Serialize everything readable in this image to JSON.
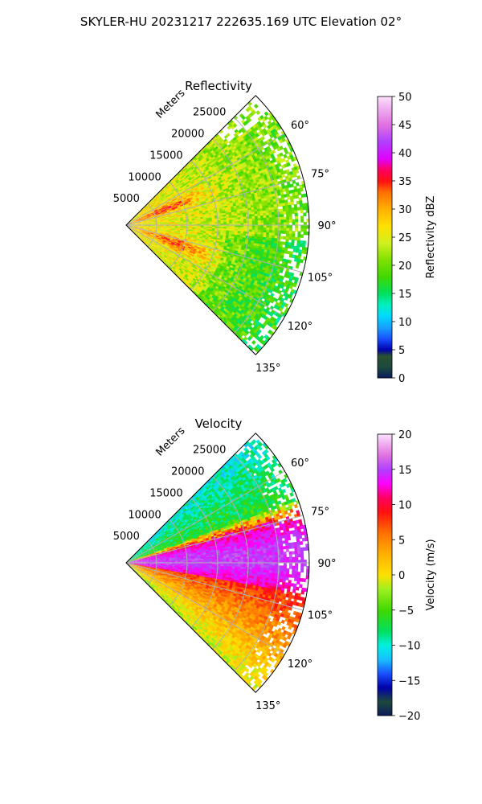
{
  "figure_title": "SKYLER-HU  20231217  222635.169 UTC Elevation 02°",
  "chart_data": [
    {
      "type": "heatmap",
      "title": "Reflectivity",
      "radial_label": "Meters",
      "radial_ticks": [
        5000,
        10000,
        15000,
        20000,
        25000
      ],
      "radial_tick_labels": [
        "5000",
        "10000",
        "15000",
        "20000",
        "25000"
      ],
      "radial_range": [
        0,
        30000
      ],
      "angle_ticks": [
        60,
        75,
        90,
        105,
        120,
        135
      ],
      "angle_tick_labels": [
        "60°",
        "75°",
        "90°",
        "105°",
        "120°",
        "135°"
      ],
      "angle_range": [
        45,
        135
      ],
      "grid": true,
      "colorbar": {
        "label": "Reflectivity dBZ",
        "range": [
          0,
          50
        ],
        "ticks": [
          0,
          5,
          10,
          15,
          20,
          25,
          30,
          35,
          40,
          45,
          50
        ],
        "tick_labels": [
          "0",
          "5",
          "10",
          "15",
          "20",
          "25",
          "30",
          "35",
          "40",
          "45",
          "50"
        ],
        "stops": [
          {
            "value": 0,
            "color": "#0a1a5c"
          },
          {
            "value": 2,
            "color": "#1c4a3c"
          },
          {
            "value": 4,
            "color": "#2a5030"
          },
          {
            "value": 5,
            "color": "#0000aa"
          },
          {
            "value": 7,
            "color": "#1850ff"
          },
          {
            "value": 9,
            "color": "#18a0ff"
          },
          {
            "value": 11,
            "color": "#00d8ff"
          },
          {
            "value": 13,
            "color": "#00f0c0"
          },
          {
            "value": 15,
            "color": "#00e060"
          },
          {
            "value": 18,
            "color": "#40d800"
          },
          {
            "value": 21,
            "color": "#80e000"
          },
          {
            "value": 24,
            "color": "#d0f020"
          },
          {
            "value": 27,
            "color": "#ffe000"
          },
          {
            "value": 30,
            "color": "#ffb000"
          },
          {
            "value": 33,
            "color": "#ff7000"
          },
          {
            "value": 35,
            "color": "#ff1010"
          },
          {
            "value": 37,
            "color": "#ff0060"
          },
          {
            "value": 39,
            "color": "#e000ff"
          },
          {
            "value": 42,
            "color": "#b040ff"
          },
          {
            "value": 45,
            "color": "#e070e0"
          },
          {
            "value": 48,
            "color": "#f0b0f0"
          },
          {
            "value": 50,
            "color": "#fce0fc"
          }
        ]
      },
      "field": "reflectivity",
      "field_summary": "Mostly 18–32 dBZ; 33–37 dBZ bands near 60–75° and 105–120° at 2–15 km; 18–22 dBZ toward outer range"
    },
    {
      "type": "heatmap",
      "title": "Velocity",
      "radial_label": "Meters",
      "radial_ticks": [
        5000,
        10000,
        15000,
        20000,
        25000
      ],
      "radial_tick_labels": [
        "5000",
        "10000",
        "15000",
        "20000",
        "25000"
      ],
      "radial_range": [
        0,
        30000
      ],
      "angle_ticks": [
        60,
        75,
        90,
        105,
        120,
        135
      ],
      "angle_tick_labels": [
        "60°",
        "75°",
        "90°",
        "105°",
        "120°",
        "135°"
      ],
      "angle_range": [
        45,
        135
      ],
      "grid": true,
      "colorbar": {
        "label": "Velocity (m/s)",
        "range": [
          -20,
          20
        ],
        "ticks": [
          -20,
          -15,
          -10,
          -5,
          0,
          5,
          10,
          15,
          20
        ],
        "tick_labels": [
          "−20",
          "−15",
          "−10",
          "−5",
          "0",
          "5",
          "10",
          "15",
          "20"
        ],
        "stops": [
          {
            "value": -20,
            "color": "#0a1a5c"
          },
          {
            "value": -18,
            "color": "#1c4a3c"
          },
          {
            "value": -16,
            "color": "#0000aa"
          },
          {
            "value": -14,
            "color": "#1850ff"
          },
          {
            "value": -12,
            "color": "#18c0ff"
          },
          {
            "value": -10,
            "color": "#00f0e0"
          },
          {
            "value": -8,
            "color": "#00e060"
          },
          {
            "value": -5,
            "color": "#40d800"
          },
          {
            "value": -2,
            "color": "#a0f020"
          },
          {
            "value": 0,
            "color": "#ffe000"
          },
          {
            "value": 3,
            "color": "#ffb000"
          },
          {
            "value": 6,
            "color": "#ff7000"
          },
          {
            "value": 9,
            "color": "#ff1010"
          },
          {
            "value": 11,
            "color": "#ff0060"
          },
          {
            "value": 13,
            "color": "#ff00ff"
          },
          {
            "value": 15,
            "color": "#b040ff"
          },
          {
            "value": 17,
            "color": "#e070e0"
          },
          {
            "value": 20,
            "color": "#fce0fc"
          }
        ]
      },
      "field": "velocity",
      "field_summary": "−15 to −5 m/s at 45–70°; +12 to +16 m/s at 75–100°; 0 to +9 m/s at 100–135°"
    }
  ]
}
